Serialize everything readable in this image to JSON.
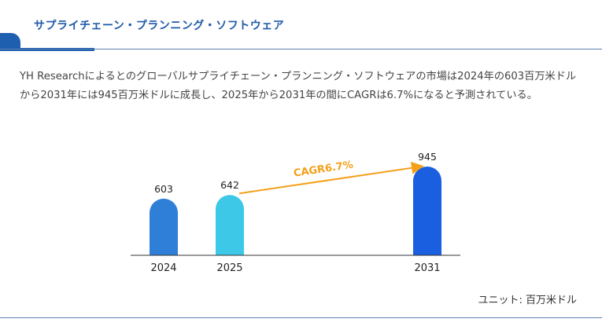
{
  "header": {
    "title": "サプライチェーン・プランニング・ソフトウェア"
  },
  "description": "YH Researchによるとのグローバルサプライチェーン・プランニング・ソフトウェアの市場は2024年の603百万米ドルから2031年には945百万米ドルに成長し、2025年から2031年の間にCAGRは6.7%になると予測されている。",
  "unit_label": "ユニット: 百万米ドル",
  "colors": {
    "accent": "#1f5fb0",
    "cagr_arrow": "#f5a01a"
  },
  "chart_data": {
    "type": "bar",
    "categories": [
      "2024",
      "2025",
      "2031"
    ],
    "values": [
      603,
      642,
      945
    ],
    "bar_colors": [
      "#2f7fd8",
      "#3cc8e6",
      "#1a5fe0"
    ],
    "annotation": {
      "text": "CAGR6.7%",
      "from": "2025",
      "to": "2031"
    },
    "title": "",
    "xlabel": "",
    "ylabel": "",
    "ylim": [
      0,
      1000
    ],
    "grid": false,
    "legend": "none"
  }
}
